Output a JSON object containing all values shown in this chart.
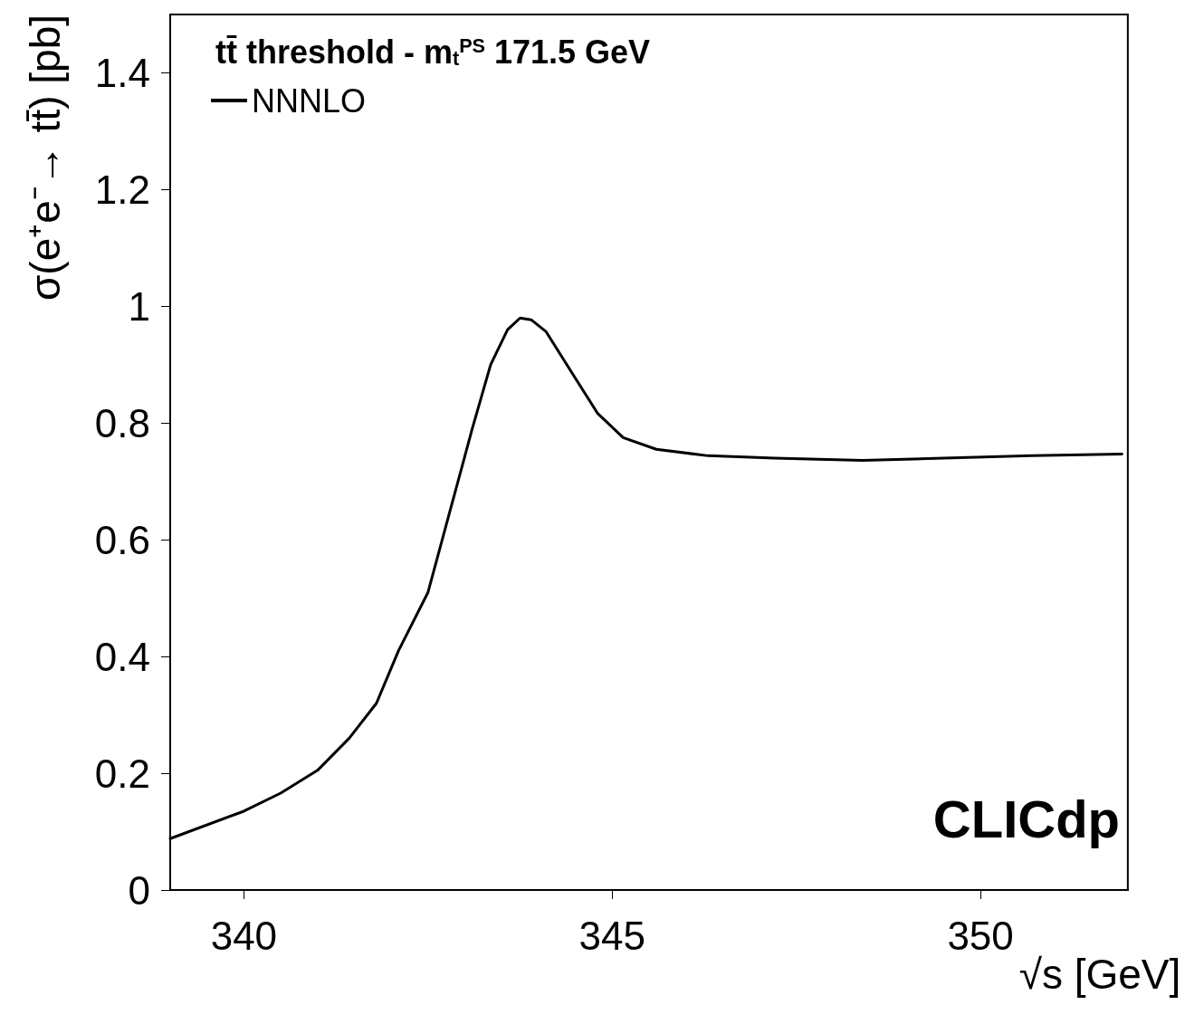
{
  "chart_data": {
    "type": "line",
    "title": "tt̄ threshold - m$_{t}$$^{PS}$ 171.5 GeV",
    "xlabel": "√s [GeV]",
    "ylabel": "σ(e⁺e⁻→ tt̄) [pb]",
    "annotations": [
      "CLICdp"
    ],
    "xlim": [
      339,
      352
    ],
    "xticks": [
      340,
      345,
      350
    ],
    "ylim": [
      0,
      1.5
    ],
    "yticks": [
      0,
      0.2,
      0.4,
      0.6,
      0.8,
      1,
      1.2,
      1.4
    ],
    "grid": false,
    "legend": "top left",
    "marker": "none",
    "line_style": "solid",
    "x": [
      339,
      340,
      340.5,
      341,
      341.43,
      341.8,
      342.1,
      342.5,
      342.8,
      343.1,
      343.35,
      343.58,
      343.75,
      343.9,
      344.1,
      344.45,
      344.8,
      345.15,
      345.6,
      346.3,
      347.2,
      348.4,
      349.5,
      350.7,
      351.92
    ],
    "series": [
      {
        "name": "NNNLO",
        "color": "#000000",
        "values": [
          0.088,
          0.135,
          0.166,
          0.205,
          0.26,
          0.32,
          0.41,
          0.51,
          0.65,
          0.79,
          0.9,
          0.96,
          0.98,
          0.977,
          0.957,
          0.887,
          0.817,
          0.775,
          0.755,
          0.744,
          0.74,
          0.736,
          0.74,
          0.744,
          0.747
        ]
      }
    ]
  }
}
